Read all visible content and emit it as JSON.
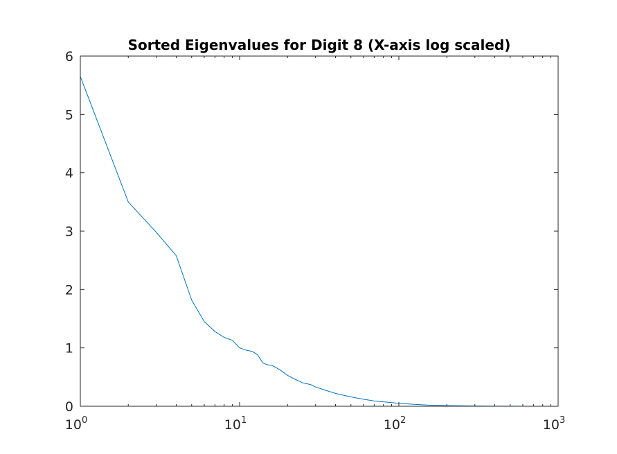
{
  "chart_data": {
    "type": "line",
    "title": "Sorted Eigenvalues for Digit 8 (X-axis log scaled)",
    "xlabel": "",
    "ylabel": "",
    "xscale": "log",
    "xlim": [
      1,
      1000
    ],
    "ylim": [
      0,
      6
    ],
    "grid": false,
    "line_color": "#0072BD",
    "x_ticks": [
      {
        "value": 1,
        "base": "10",
        "exp": "0"
      },
      {
        "value": 10,
        "base": "10",
        "exp": "1"
      },
      {
        "value": 100,
        "base": "10",
        "exp": "2"
      },
      {
        "value": 1000,
        "base": "10",
        "exp": "3"
      }
    ],
    "y_ticks": [
      {
        "value": 0,
        "label": "0"
      },
      {
        "value": 1,
        "label": "1"
      },
      {
        "value": 2,
        "label": "2"
      },
      {
        "value": 3,
        "label": "3"
      },
      {
        "value": 4,
        "label": "4"
      },
      {
        "value": 5,
        "label": "5"
      },
      {
        "value": 6,
        "label": "6"
      }
    ],
    "series": [
      {
        "x": [
          1,
          2,
          3,
          4,
          5,
          6,
          7,
          8,
          9,
          10,
          11,
          12,
          13,
          14,
          15,
          16,
          18,
          20,
          22,
          25,
          28,
          30,
          35,
          40,
          50,
          60,
          70,
          80,
          100,
          120,
          150,
          200,
          300,
          400,
          500,
          600,
          700,
          784
        ],
        "y": [
          5.65,
          3.5,
          2.98,
          2.58,
          1.82,
          1.45,
          1.28,
          1.18,
          1.13,
          1.0,
          0.96,
          0.94,
          0.88,
          0.74,
          0.71,
          0.7,
          0.62,
          0.53,
          0.47,
          0.4,
          0.37,
          0.33,
          0.27,
          0.22,
          0.16,
          0.12,
          0.09,
          0.075,
          0.05,
          0.035,
          0.02,
          0.01,
          0.004,
          0.002,
          0.001,
          0.0005,
          0.0002,
          0.0
        ]
      }
    ]
  }
}
